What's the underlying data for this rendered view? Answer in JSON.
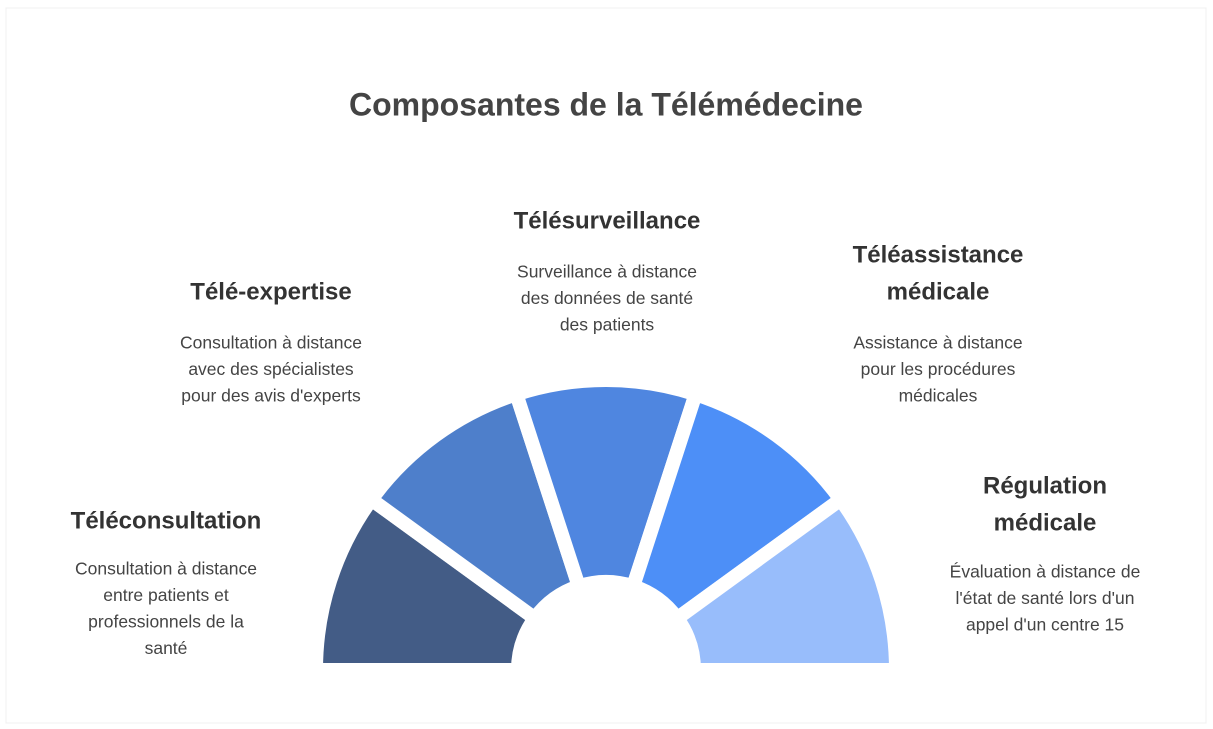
{
  "title": "Composantes de la Télémédecine",
  "items": [
    {
      "title": [
        "Téléconsultation"
      ],
      "description": [
        "Consultation à distance",
        "entre patients et",
        "professionnels de la",
        "santé"
      ],
      "color": "#435c86"
    },
    {
      "title": [
        "Télé-expertise"
      ],
      "description": [
        "Consultation à distance",
        "avec des spécialistes",
        "pour des avis d'experts"
      ],
      "color": "#4e7fcb"
    },
    {
      "title": [
        "Télésurveillance"
      ],
      "description": [
        "Surveillance à distance",
        "des données de santé",
        "des patients"
      ],
      "color": "#4f86e0"
    },
    {
      "title": [
        "Téléassistance",
        "médicale"
      ],
      "description": [
        "Assistance à distance",
        "pour les procédures",
        "médicales"
      ],
      "color": "#4d8ff7"
    },
    {
      "title": [
        "Régulation",
        "médicale"
      ],
      "description": [
        "Évaluation à distance de",
        "l'état de santé lors d'un",
        "appel d'un centre 15"
      ],
      "color": "#98bdfb"
    }
  ]
}
